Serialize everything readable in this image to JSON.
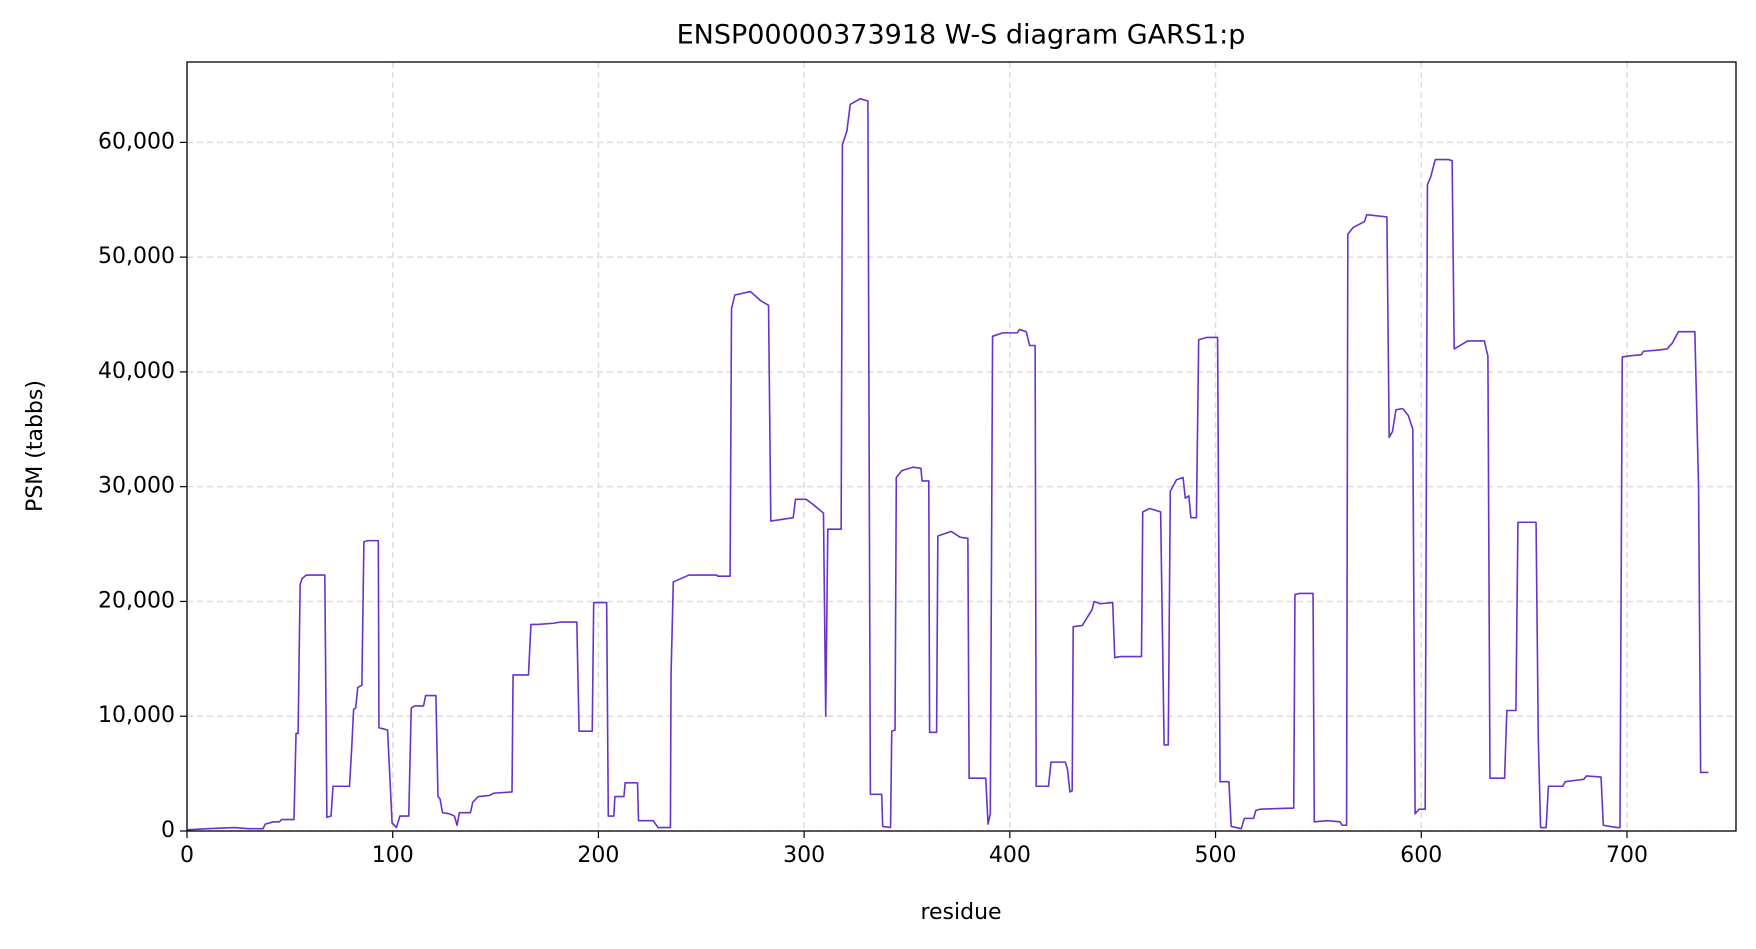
{
  "chart_data": {
    "type": "line",
    "title": "ENSP00000373918 W-S diagram GARS1:p",
    "xlabel": "residue",
    "ylabel": "PSM (tabbs)",
    "color": "#6633cc",
    "grid": true,
    "xlim": [
      0,
      753
    ],
    "xticks": [
      0,
      100,
      200,
      300,
      400,
      500,
      600,
      700
    ],
    "ylim": [
      0,
      67000
    ],
    "yticks": [
      0,
      {
        "value": 10000,
        "label": "10,000"
      },
      {
        "value": 20000,
        "label": "20,000"
      },
      {
        "value": 30000,
        "label": "30,000"
      },
      {
        "value": 40000,
        "label": "40,000"
      },
      {
        "value": 50000,
        "label": "50,000"
      },
      {
        "value": 60000,
        "label": "60,000"
      }
    ],
    "x": [
      0,
      10,
      23,
      30,
      37,
      38,
      42,
      45,
      46,
      52,
      53,
      54,
      55,
      56,
      58,
      67,
      68,
      70,
      71,
      79,
      80,
      81,
      82,
      83,
      85,
      86,
      88,
      93,
      93.3,
      97.5,
      99.7,
      101.8,
      103.5,
      107.8,
      109,
      110.6,
      115,
      116,
      121,
      122,
      123,
      124.2,
      127.5,
      130,
      131.3,
      132.4,
      137.8,
      138.9,
      141.6,
      147,
      149.2,
      158,
      158.5,
      166,
      167.2,
      170.5,
      178,
      181.4,
      189.5,
      190.6,
      197,
      197.7,
      204,
      204.8,
      207.5,
      208,
      212.4,
      213,
      219,
      219.5,
      226.6,
      229,
      235,
      235.3,
      236.4,
      244,
      257.6,
      258,
      264,
      264.7,
      266.3,
      273.9,
      278.9,
      282.7,
      283.8,
      294.7,
      295.8,
      301,
      304,
      309.4,
      310.5,
      311.5,
      318,
      318.6,
      320.8,
      322.4,
      327.3,
      331,
      332.2,
      337.7,
      338.2,
      342,
      342.6,
      344.2,
      344.8,
      347.5,
      353,
      356.8,
      357.3,
      360.6,
      361,
      364.4,
      365,
      371.5,
      375.8,
      379.6,
      380.2,
      388.3,
      389.4,
      390.5,
      391.6,
      396.5,
      403.6,
      404.7,
      408,
      409.6,
      412.3,
      412.8,
      418.8,
      420,
      427,
      428,
      429.2,
      430.3,
      430.8,
      435.2,
      440,
      441,
      444,
      450,
      451,
      453.7,
      464,
      464.6,
      467.9,
      473.3,
      475,
      477,
      478,
      481,
      484.2,
      485.3,
      487,
      488,
      490.7,
      491.8,
      495.6,
      501,
      502.2,
      506.5,
      507.6,
      512.5,
      514,
      518.5,
      519.6,
      521.8,
      538,
      538.6,
      540.8,
      547.4,
      548,
      554.5,
      560.5,
      561.5,
      563.7,
      564.3,
      567,
      572.4,
      573.5,
      583.3,
      584.4,
      586,
      587.7,
      591,
      593.7,
      595.9,
      597,
      599,
      601.9,
      603,
      604.6,
      606.8,
      613.3,
      615,
      616,
      619.8,
      622.5,
      630.7,
      631.8,
      632.4,
      633.4,
      640.5,
      641.6,
      646,
      647,
      655.8,
      656.9,
      658,
      660.7,
      661.8,
      668.8,
      670,
      674.3,
      679,
      680.3,
      687.4,
      688.5,
      691.7,
      695.5,
      696.6,
      697.7,
      701.5,
      707,
      708,
      715,
      719.5,
      722,
      725,
      733,
      734.8,
      735.8,
      739.6
    ],
    "values": [
      100,
      200,
      300,
      200,
      200,
      600,
      800,
      800,
      1000,
      1000,
      8500,
      8500,
      21500,
      22000,
      22300,
      22300,
      1200,
      1300,
      3900,
      3900,
      7000,
      10600,
      10700,
      12500,
      12700,
      25200,
      25300,
      25300,
      9000,
      8800,
      700,
      300,
      1300,
      1300,
      10700,
      10900,
      10900,
      11800,
      11800,
      3000,
      2800,
      1600,
      1500,
      1300,
      500,
      1600,
      1600,
      2500,
      3000,
      3100,
      3300,
      3400,
      13600,
      13600,
      18000,
      18000,
      18100,
      18200,
      18200,
      8700,
      8700,
      19900,
      19900,
      1300,
      1300,
      3000,
      3000,
      4200,
      4200,
      900,
      900,
      300,
      300,
      13600,
      21700,
      22300,
      22300,
      22200,
      22200,
      45500,
      46700,
      47000,
      46200,
      45800,
      27000,
      27300,
      28900,
      28900,
      28500,
      27700,
      10000,
      26300,
      26300,
      59800,
      61000,
      63300,
      63800,
      63600,
      3200,
      3200,
      400,
      300,
      8700,
      8800,
      30800,
      31400,
      31700,
      31600,
      30500,
      30500,
      8600,
      8600,
      25700,
      26100,
      25600,
      25500,
      4600,
      4600,
      600,
      1500,
      43100,
      43400,
      43400,
      43700,
      43500,
      42300,
      42300,
      3900,
      3900,
      6000,
      6000,
      5400,
      3400,
      3500,
      17800,
      17900,
      19300,
      20000,
      19800,
      19900,
      15100,
      15200,
      15200,
      27800,
      28100,
      27800,
      7500,
      7500,
      29600,
      30600,
      30800,
      29000,
      29200,
      27300,
      27300,
      42800,
      43000,
      43000,
      4300,
      4300,
      400,
      200,
      1100,
      1100,
      1800,
      1900,
      2000,
      20600,
      20700,
      20700,
      800,
      900,
      800,
      500,
      500,
      52000,
      52600,
      53100,
      53700,
      53500,
      34300,
      34800,
      36700,
      36800,
      36200,
      35000,
      1500,
      1900,
      1900,
      56300,
      57000,
      58500,
      58500,
      58400,
      42000,
      42400,
      42700,
      42700,
      41800,
      41400,
      4600,
      4600,
      10500,
      10500,
      26900,
      26900,
      8000,
      300,
      300,
      3900,
      3900,
      4300,
      4400,
      4500,
      4800,
      4700,
      500,
      400,
      300,
      300,
      41300,
      41400,
      41500,
      41800,
      41900,
      42000,
      42500,
      43500,
      43500,
      30000,
      5100,
      5100
    ]
  }
}
